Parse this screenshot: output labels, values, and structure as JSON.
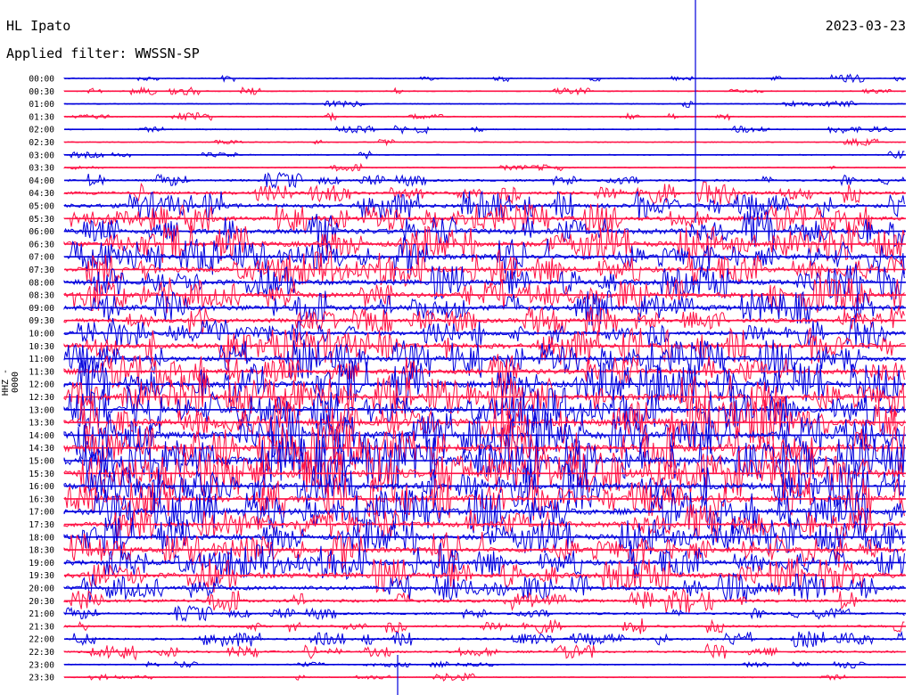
{
  "station": "HL Ipato",
  "date": "2023-03-23",
  "filter_text": "Applied filter: WWSSN-SP",
  "channel_label": "HHZ - 0000",
  "colors": {
    "trace_a": "#0000dd",
    "trace_b": "#ff1144",
    "background": "#ffffff"
  },
  "chart_data": {
    "type": "line",
    "title": "HL Ipato",
    "subtitle": "Applied filter: WWSSN-SP",
    "ylabel": "HHZ - 0000",
    "xlabel": "",
    "grid": false,
    "rows": [
      "00:00",
      "00:30",
      "01:00",
      "01:30",
      "02:00",
      "02:30",
      "03:00",
      "03:30",
      "04:00",
      "04:30",
      "05:00",
      "05:30",
      "06:00",
      "06:30",
      "07:00",
      "07:30",
      "08:00",
      "08:30",
      "09:00",
      "09:30",
      "10:00",
      "10:30",
      "11:00",
      "11:30",
      "12:00",
      "12:30",
      "13:00",
      "13:30",
      "14:00",
      "14:30",
      "15:00",
      "15:30",
      "16:00",
      "16:30",
      "17:00",
      "17:30",
      "18:00",
      "18:30",
      "19:00",
      "19:30",
      "20:00",
      "20:30",
      "21:00",
      "21:30",
      "22:00",
      "22:30",
      "23:00",
      "23:30"
    ],
    "series": [
      {
        "values": [
          1,
          1,
          1,
          1,
          1,
          1,
          1,
          1,
          2,
          3,
          4,
          4,
          5,
          5,
          5,
          5,
          5,
          5,
          5,
          4,
          4,
          5,
          5,
          5,
          6,
          6,
          6,
          7,
          7,
          7,
          8,
          8,
          6,
          6,
          6,
          5,
          5,
          5,
          5,
          5,
          4,
          3,
          2,
          2,
          2,
          2,
          1,
          1
        ]
      }
    ]
  }
}
